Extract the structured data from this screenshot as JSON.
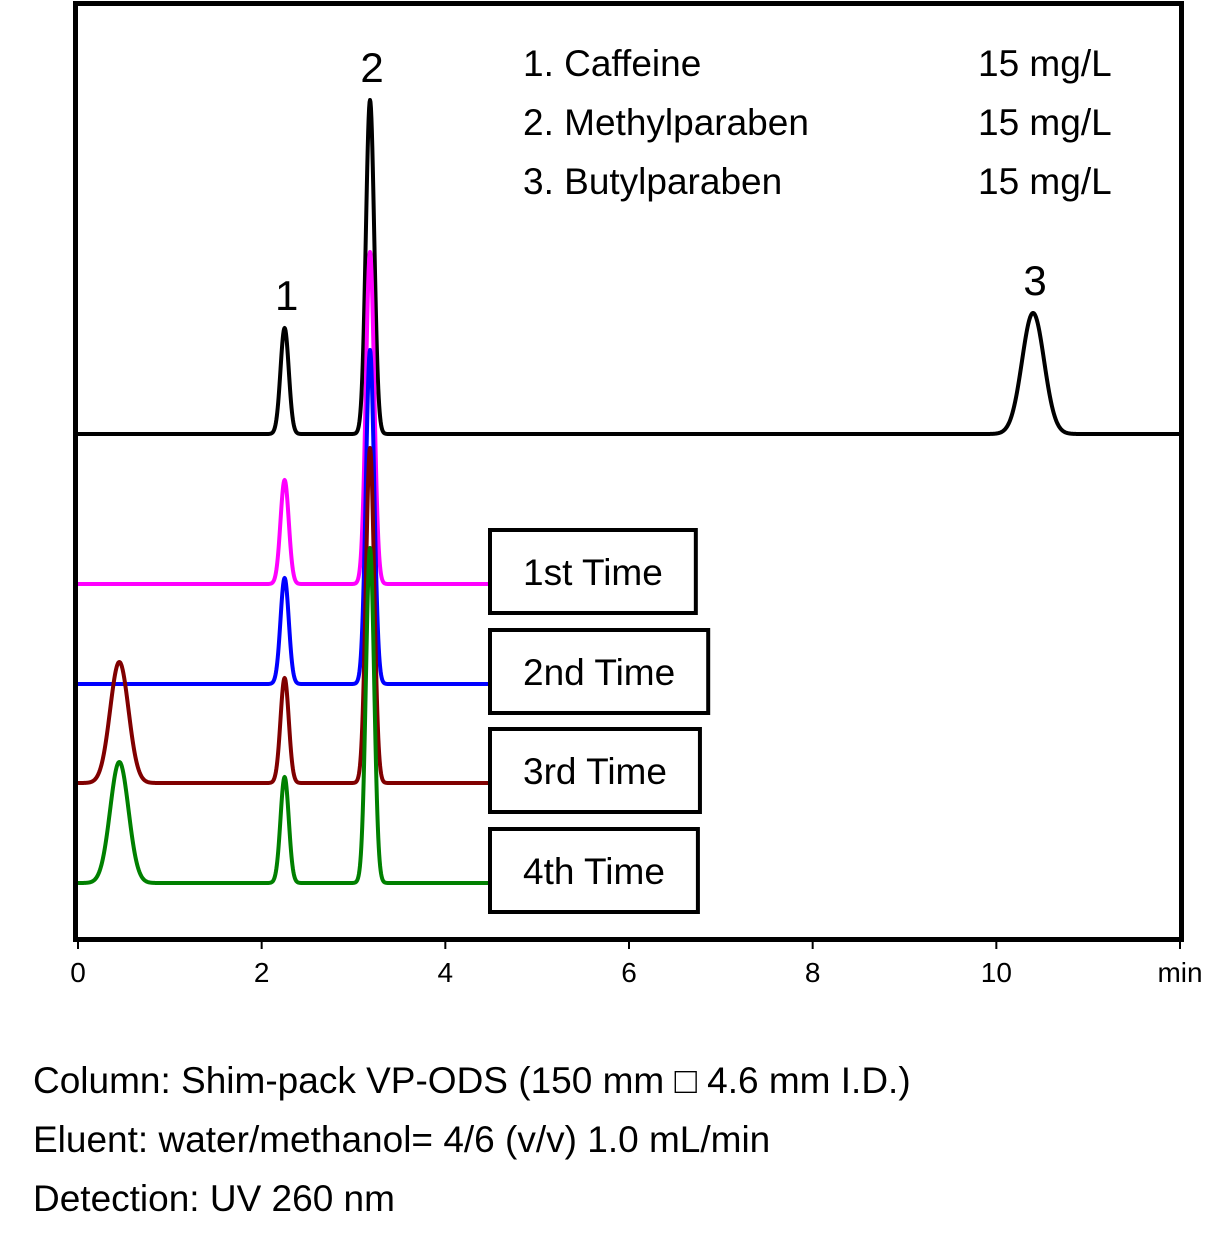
{
  "chart_data": {
    "type": "chromatogram",
    "xlim": [
      0,
      12
    ],
    "xticks": [
      0,
      2,
      4,
      6,
      8,
      10,
      {
        "value": 12,
        "label": "min"
      }
    ],
    "compounds": [
      {
        "label": "1. Caffeine",
        "concentration": "15 mg/L"
      },
      {
        "label": "2. Methylparaben",
        "concentration": "15 mg/L"
      },
      {
        "label": "3. Butylparaben",
        "concentration": "15 mg/L"
      }
    ],
    "peak_labels": [
      {
        "text": "1",
        "x": 2.25
      },
      {
        "text": "2",
        "x": 3.18
      },
      {
        "text": "3",
        "x": 10.4
      }
    ],
    "series": [
      {
        "color": "#000000",
        "range": [
          0,
          12
        ],
        "peaks": [
          {
            "x": 2.25,
            "height": 106,
            "width": 0.045
          },
          {
            "x": 3.18,
            "height": 334,
            "width": 0.045
          },
          {
            "x": 10.4,
            "height": 121,
            "width": 0.12
          }
        ]
      },
      {
        "name": "1st Time",
        "color": "#ff00ff",
        "range": [
          0,
          4.5
        ],
        "peaks": [
          {
            "x": 2.25,
            "height": 104,
            "width": 0.045
          },
          {
            "x": 3.18,
            "height": 332,
            "width": 0.045
          }
        ]
      },
      {
        "name": "2nd Time",
        "color": "#0000ff",
        "range": [
          0,
          4.5
        ],
        "peaks": [
          {
            "x": 2.25,
            "height": 106,
            "width": 0.045
          },
          {
            "x": 3.18,
            "height": 334,
            "width": 0.045
          }
        ]
      },
      {
        "name": "3rd Time",
        "color": "#800000",
        "range": [
          0,
          4.5
        ],
        "peaks": [
          {
            "x": 0.45,
            "height": 121,
            "width": 0.1
          },
          {
            "x": 2.25,
            "height": 105,
            "width": 0.045
          },
          {
            "x": 3.18,
            "height": 335,
            "width": 0.045
          }
        ]
      },
      {
        "name": "4th Time",
        "color": "#008000",
        "range": [
          0,
          4.5
        ],
        "peaks": [
          {
            "x": 0.45,
            "height": 121,
            "width": 0.1
          },
          {
            "x": 2.25,
            "height": 106,
            "width": 0.045
          },
          {
            "x": 3.18,
            "height": 335,
            "width": 0.045
          }
        ]
      }
    ],
    "conditions": [
      "Column: Shim-pack VP-ODS (150 mm □ 4.6 mm I.D.)",
      "Eluent: water/methanol= 4/6 (v/v) 1.0 mL/min",
      "Detection: UV 260 nm"
    ]
  }
}
